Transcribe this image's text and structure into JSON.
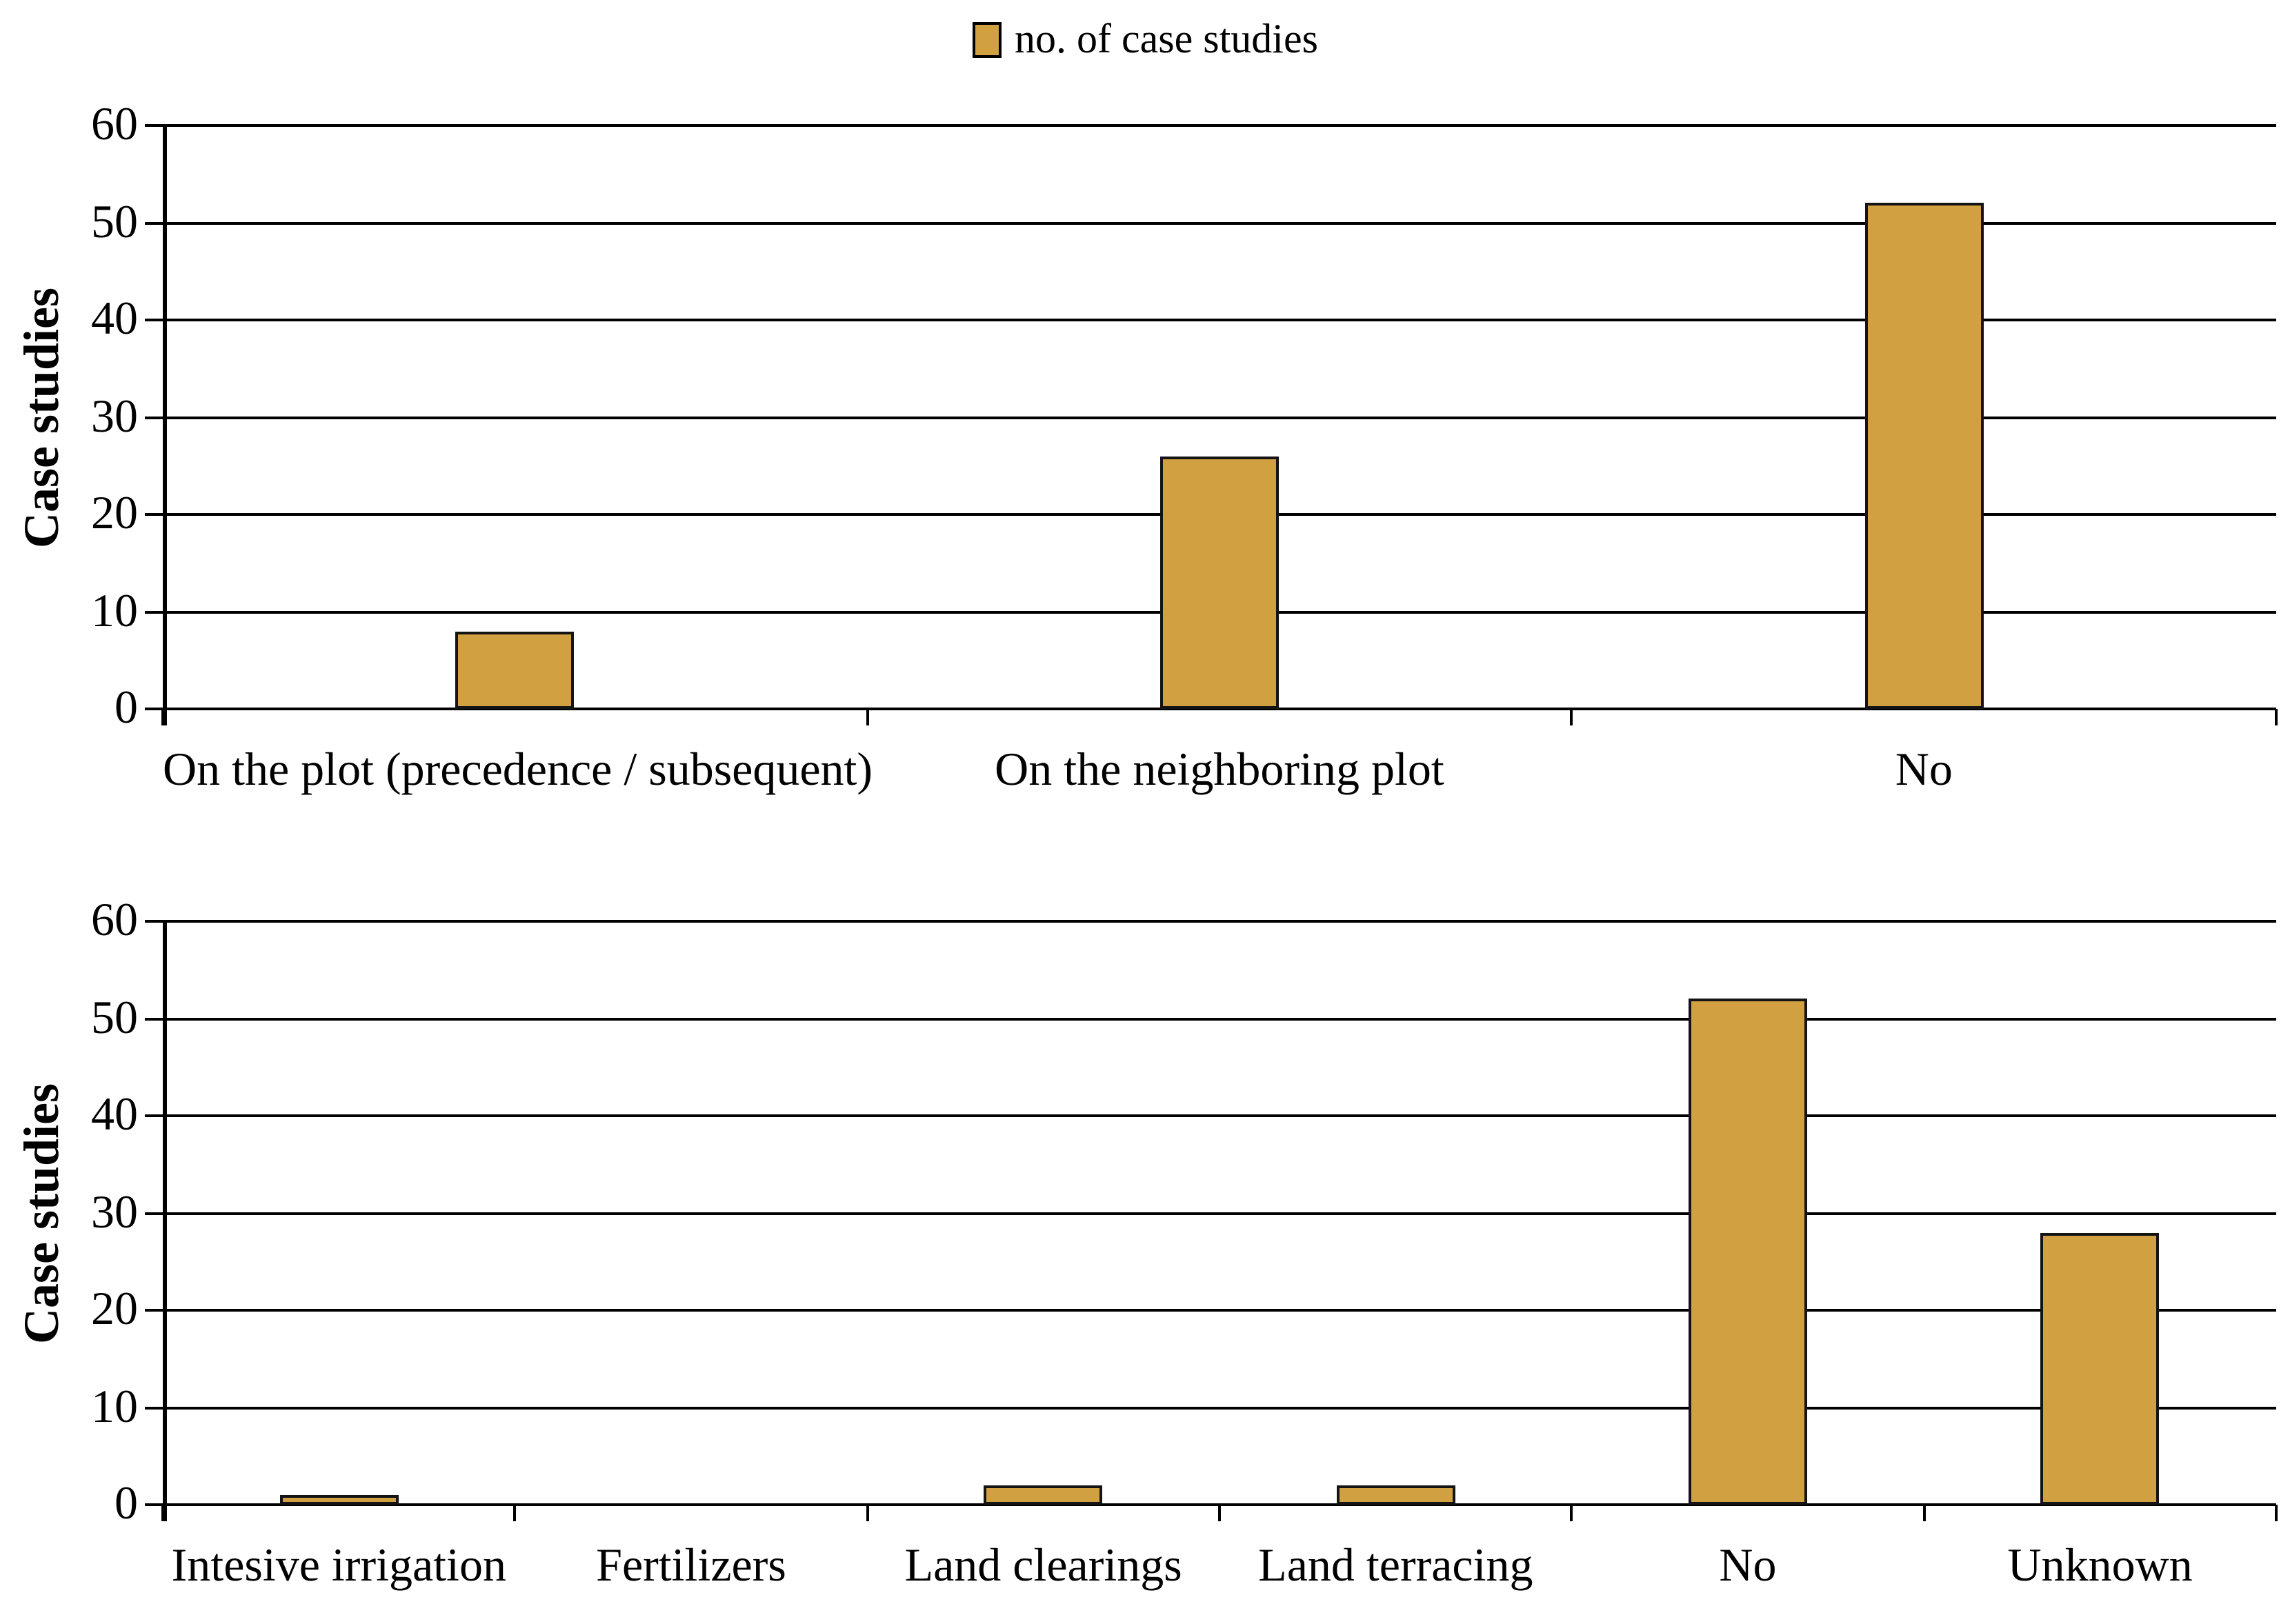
{
  "legend": {
    "label": "no. of case studies",
    "swatch_color": "#D1A041"
  },
  "colors": {
    "bar_fill": "#D1A041",
    "bar_border": "#141414",
    "axis": "#000000",
    "grid": "#000000",
    "text": "#000000",
    "background": "#FFFFFF"
  },
  "chart_data": [
    {
      "type": "bar",
      "title": "",
      "ylabel": "Case studies",
      "xlabel": "",
      "ylim": [
        0,
        60
      ],
      "yticks": [
        0,
        10,
        20,
        30,
        40,
        50,
        60
      ],
      "grid": "horizontal",
      "legend_position": "top-center",
      "series_label": "no. of case studies",
      "categories": [
        "On the plot (precedence / subsequent)",
        "On the neighboring plot",
        "No"
      ],
      "values": [
        8,
        26,
        52
      ]
    },
    {
      "type": "bar",
      "title": "",
      "ylabel": "Case studies",
      "xlabel": "",
      "ylim": [
        0,
        60
      ],
      "yticks": [
        0,
        10,
        20,
        30,
        40,
        50,
        60
      ],
      "grid": "horizontal",
      "legend_position": "none",
      "series_label": "no. of case studies",
      "categories": [
        "Intesive irrigation",
        "Fertilizers",
        "Land clearings",
        "Land terracing",
        "No",
        "Unknown"
      ],
      "values": [
        1,
        0,
        2,
        2,
        52,
        28
      ]
    }
  ]
}
